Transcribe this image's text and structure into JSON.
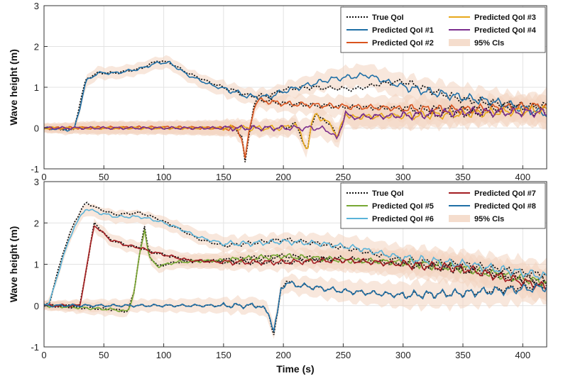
{
  "chart_data": [
    {
      "type": "line",
      "title": "",
      "xlabel": "",
      "ylabel": "Wave height (m)",
      "xlim": [
        0,
        420
      ],
      "ylim": [
        -1,
        3
      ],
      "xticks": [
        "0",
        "50",
        "100",
        "150",
        "200",
        "250",
        "300",
        "350",
        "400"
      ],
      "yticks": [
        "-1",
        "0",
        "1",
        "2",
        "3"
      ],
      "grid": true,
      "legend_position": "top-right",
      "legend": [
        "True QoI",
        "Predicted QoI #1",
        "Predicted QoI #2",
        "Predicted QoI #3",
        "Predicted QoI #4",
        "95% CIs"
      ],
      "ci_band": {
        "name": "95% CIs",
        "color": "#f2d4c0",
        "x": [
          0,
          20,
          40,
          100,
          150,
          200,
          250,
          300,
          350,
          400,
          420
        ],
        "half": [
          0.1,
          0.12,
          0.15,
          0.15,
          0.18,
          0.2,
          0.25,
          0.3,
          0.3,
          0.3,
          0.35
        ]
      },
      "series": [
        {
          "name": "True QoI",
          "role": "truth",
          "color": "#111111",
          "dash": "2,2",
          "x": [
            0,
            25,
            30,
            35,
            45,
            60,
            80,
            95,
            105,
            120,
            140,
            160,
            170,
            180,
            190,
            200,
            220,
            240,
            260,
            280,
            300,
            320,
            350,
            380,
            420
          ],
          "y": [
            0,
            -0.05,
            0.6,
            1.2,
            1.35,
            1.35,
            1.45,
            1.65,
            1.6,
            1.35,
            1.1,
            0.9,
            0.8,
            0.78,
            0.8,
            0.95,
            1.0,
            0.98,
            0.95,
            1.08,
            1.15,
            0.95,
            0.7,
            0.6,
            0.5
          ]
        },
        {
          "name": "True QoI",
          "role": "truth",
          "color": "#111111",
          "dash": "2,2",
          "x": [
            0,
            100,
            150,
            160,
            165,
            168,
            172,
            175,
            178,
            185,
            200,
            250,
            300,
            350,
            420
          ],
          "y": [
            0,
            0,
            0,
            0,
            -0.2,
            -0.85,
            0.0,
            0.5,
            0.7,
            0.68,
            0.6,
            0.52,
            0.48,
            0.45,
            0.55
          ]
        },
        {
          "name": "True QoI",
          "role": "truth",
          "color": "#111111",
          "dash": "2,2",
          "x": [
            0,
            100,
            200,
            210,
            215,
            220,
            223,
            227,
            232,
            240,
            245,
            250,
            252,
            256,
            265,
            300,
            350,
            420
          ],
          "y": [
            0,
            0,
            0,
            0.1,
            -0.2,
            -0.6,
            0.0,
            0.4,
            0.2,
            0.1,
            -0.3,
            0.2,
            0.4,
            0.25,
            0.28,
            0.3,
            0.35,
            0.4
          ]
        },
        {
          "name": "Predicted QoI #1",
          "color": "#1f6fa6",
          "x": [
            0,
            25,
            30,
            35,
            45,
            60,
            80,
            95,
            105,
            120,
            140,
            160,
            170,
            180,
            190,
            200,
            220,
            240,
            255,
            270,
            290,
            310,
            330,
            350,
            380,
            420
          ],
          "y": [
            0,
            -0.05,
            0.5,
            1.15,
            1.35,
            1.35,
            1.45,
            1.6,
            1.6,
            1.3,
            1.05,
            0.88,
            0.78,
            0.76,
            0.78,
            0.9,
            1.05,
            1.2,
            1.25,
            1.3,
            1.1,
            0.95,
            0.85,
            0.75,
            0.62,
            0.35
          ]
        },
        {
          "name": "Predicted QoI #2",
          "color": "#d9541e",
          "x": [
            0,
            100,
            150,
            160,
            165,
            168,
            172,
            175,
            178,
            185,
            200,
            250,
            300,
            350,
            420
          ],
          "y": [
            0,
            0.02,
            0,
            0,
            -0.2,
            -0.75,
            0.0,
            0.45,
            0.68,
            0.66,
            0.6,
            0.53,
            0.48,
            0.45,
            0.55
          ]
        },
        {
          "name": "Predicted QoI #3",
          "color": "#e8a81b",
          "x": [
            0,
            100,
            200,
            210,
            215,
            220,
            223,
            227,
            232,
            240,
            245,
            250,
            252,
            256,
            265,
            300,
            350,
            420
          ],
          "y": [
            0,
            0,
            0,
            0.1,
            -0.2,
            -0.55,
            0.0,
            0.4,
            0.2,
            0.1,
            -0.25,
            0.2,
            0.38,
            0.25,
            0.28,
            0.3,
            0.35,
            0.45
          ]
        },
        {
          "name": "Predicted QoI #4",
          "color": "#7b2d8e",
          "x": [
            0,
            100,
            200,
            230,
            240,
            245,
            250,
            252,
            256,
            265,
            300,
            350,
            420
          ],
          "y": [
            0,
            0,
            0,
            0,
            -0.1,
            -0.3,
            0.2,
            0.4,
            0.25,
            0.28,
            0.3,
            0.4,
            0.38
          ]
        }
      ]
    },
    {
      "type": "line",
      "title": "",
      "xlabel": "Time (s)",
      "ylabel": "Wave height (m)",
      "xlim": [
        0,
        420
      ],
      "ylim": [
        -1,
        3
      ],
      "xticks": [
        "0",
        "50",
        "100",
        "150",
        "200",
        "250",
        "300",
        "350",
        "400"
      ],
      "yticks": [
        "-1",
        "0",
        "1",
        "2",
        "3"
      ],
      "grid": true,
      "legend_position": "top-right",
      "legend": [
        "True QoI",
        "Predicted QoI #5",
        "Predicted QoI #6",
        "Predicted QoI #7",
        "Predicted QoI #8",
        "95% CIs"
      ],
      "ci_band": {
        "name": "95% CIs",
        "color": "#f2d4c0",
        "x": [
          0,
          20,
          40,
          100,
          150,
          200,
          250,
          300,
          350,
          400,
          420
        ],
        "half": [
          0.1,
          0.12,
          0.15,
          0.15,
          0.18,
          0.2,
          0.25,
          0.3,
          0.32,
          0.35,
          0.35
        ]
      },
      "series": [
        {
          "name": "True QoI",
          "role": "truth",
          "color": "#111111",
          "dash": "2,2",
          "x": [
            0,
            5,
            15,
            25,
            35,
            45,
            60,
            80,
            95,
            110,
            130,
            150,
            170,
            200,
            230,
            260,
            300,
            350,
            400,
            420
          ],
          "y": [
            0,
            0.1,
            1.2,
            2.0,
            2.5,
            2.35,
            2.2,
            2.25,
            2.1,
            1.9,
            1.6,
            1.45,
            1.5,
            1.6,
            1.5,
            1.35,
            1.1,
            1.0,
            0.8,
            0.75
          ]
        },
        {
          "name": "True QoI",
          "role": "truth",
          "color": "#111111",
          "dash": "2,2",
          "x": [
            0,
            30,
            36,
            42,
            55,
            70,
            80,
            90,
            120,
            150,
            200,
            250,
            300,
            350,
            420
          ],
          "y": [
            0,
            0,
            1.0,
            2.0,
            1.6,
            1.45,
            1.4,
            1.3,
            1.1,
            1.05,
            1.05,
            1.15,
            1.0,
            0.9,
            0.5
          ]
        },
        {
          "name": "True QoI",
          "role": "truth",
          "color": "#111111",
          "dash": "2,2",
          "x": [
            0,
            60,
            70,
            75,
            80,
            84,
            88,
            95,
            110,
            150,
            200,
            250,
            300,
            350,
            420
          ],
          "y": [
            0,
            -0.1,
            -0.15,
            0.3,
            1.3,
            1.9,
            1.2,
            0.95,
            1.05,
            1.1,
            1.2,
            1.1,
            1.0,
            0.85,
            0.6
          ]
        },
        {
          "name": "True QoI",
          "role": "truth",
          "color": "#111111",
          "dash": "2,2",
          "x": [
            0,
            100,
            180,
            188,
            192,
            195,
            198,
            202,
            210,
            250,
            300,
            350,
            400,
            420
          ],
          "y": [
            0,
            0,
            0,
            -0.2,
            -0.7,
            -0.2,
            0.4,
            0.6,
            0.5,
            0.35,
            0.25,
            0.3,
            0.45,
            0.5
          ]
        },
        {
          "name": "Predicted QoI #5",
          "color": "#77a833",
          "x": [
            0,
            60,
            70,
            75,
            80,
            84,
            88,
            95,
            110,
            150,
            200,
            250,
            300,
            350,
            420
          ],
          "y": [
            0,
            -0.1,
            -0.15,
            0.3,
            1.25,
            1.85,
            1.15,
            0.95,
            1.05,
            1.1,
            1.2,
            1.1,
            1.05,
            0.9,
            0.55
          ]
        },
        {
          "name": "Predicted QoI #6",
          "color": "#5ab3d9",
          "x": [
            0,
            5,
            15,
            25,
            35,
            45,
            60,
            80,
            95,
            110,
            130,
            150,
            170,
            200,
            230,
            260,
            300,
            350,
            400,
            420
          ],
          "y": [
            0,
            0.1,
            1.1,
            1.9,
            2.35,
            2.25,
            2.15,
            2.15,
            2.05,
            1.9,
            1.65,
            1.5,
            1.5,
            1.55,
            1.5,
            1.4,
            1.15,
            1.0,
            0.8,
            0.7
          ]
        },
        {
          "name": "Predicted QoI #7",
          "color": "#a31d22",
          "x": [
            0,
            30,
            36,
            42,
            55,
            70,
            80,
            90,
            120,
            150,
            200,
            250,
            300,
            350,
            420
          ],
          "y": [
            0,
            0,
            1.0,
            1.95,
            1.6,
            1.45,
            1.4,
            1.3,
            1.1,
            1.05,
            1.05,
            1.1,
            1.0,
            0.9,
            0.45
          ]
        },
        {
          "name": "Predicted QoI #8",
          "color": "#1f6fa6",
          "x": [
            0,
            100,
            180,
            188,
            192,
            195,
            198,
            202,
            210,
            250,
            300,
            350,
            400,
            420
          ],
          "y": [
            0,
            0,
            0,
            -0.2,
            -0.6,
            -0.2,
            0.4,
            0.55,
            0.5,
            0.35,
            0.25,
            0.3,
            0.4,
            0.45
          ]
        }
      ]
    }
  ]
}
